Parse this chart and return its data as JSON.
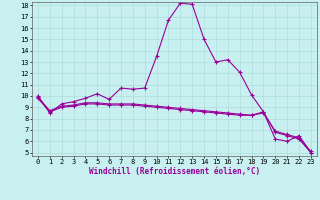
{
  "xlabel": "Windchill (Refroidissement éolien,°C)",
  "bg_color": "#c8f0f0",
  "line_color": "#990099",
  "grid_color": "#a8d8d8",
  "ylim_min": 5,
  "ylim_max": 18,
  "xlim_min": 0,
  "xlim_max": 23,
  "yticks": [
    5,
    6,
    7,
    8,
    9,
    10,
    11,
    12,
    13,
    14,
    15,
    16,
    17,
    18
  ],
  "xticks": [
    0,
    1,
    2,
    3,
    4,
    5,
    6,
    7,
    8,
    9,
    10,
    11,
    12,
    13,
    14,
    15,
    16,
    17,
    18,
    19,
    20,
    21,
    22,
    23
  ],
  "line1_x": [
    0,
    1,
    2,
    3,
    4,
    5,
    6,
    7,
    8,
    9,
    10,
    11,
    12,
    13,
    14,
    15,
    16,
    17,
    18,
    19,
    20,
    21,
    22,
    23
  ],
  "line1_y": [
    10.0,
    8.5,
    9.3,
    9.5,
    9.8,
    10.2,
    9.7,
    10.7,
    10.6,
    10.7,
    13.5,
    16.7,
    18.2,
    18.1,
    15.0,
    13.0,
    13.2,
    12.1,
    10.1,
    8.6,
    6.2,
    6.0,
    6.5,
    5.0
  ],
  "line2_x": [
    0,
    1,
    2,
    3,
    4,
    5,
    6,
    7,
    8,
    9,
    10,
    11,
    12,
    13,
    14,
    15,
    16,
    17,
    18,
    19,
    20,
    21,
    22,
    23
  ],
  "line2_y": [
    9.8,
    8.6,
    9.0,
    9.1,
    9.3,
    9.3,
    9.2,
    9.2,
    9.2,
    9.1,
    9.0,
    8.9,
    8.8,
    8.7,
    8.6,
    8.5,
    8.4,
    8.3,
    8.3,
    8.6,
    6.8,
    6.5,
    6.2,
    5.0
  ],
  "line3_x": [
    0,
    1,
    2,
    3,
    4,
    5,
    6,
    7,
    8,
    9,
    10,
    11,
    12,
    13,
    14,
    15,
    16,
    17,
    18,
    19,
    20,
    21,
    22,
    23
  ],
  "line3_y": [
    9.9,
    8.7,
    9.1,
    9.2,
    9.4,
    9.4,
    9.3,
    9.3,
    9.3,
    9.2,
    9.1,
    9.0,
    8.9,
    8.8,
    8.7,
    8.6,
    8.5,
    8.4,
    8.3,
    8.5,
    6.9,
    6.6,
    6.3,
    5.1
  ],
  "tick_fontsize": 5.0,
  "xlabel_fontsize": 5.5,
  "linewidth": 0.8,
  "markersize": 2.5
}
